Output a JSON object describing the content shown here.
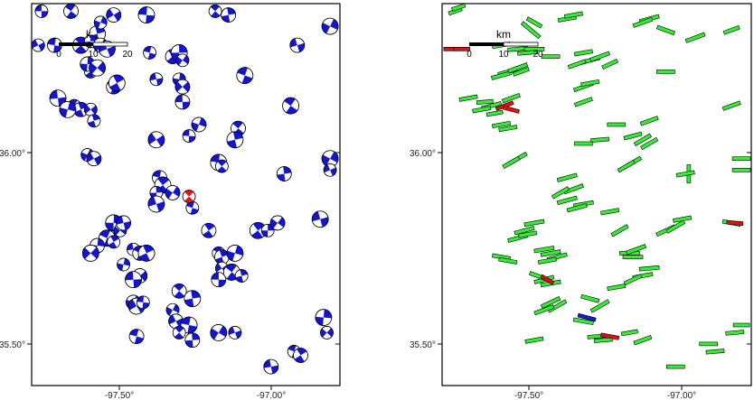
{
  "colors": {
    "beachball_fill": "#1515d0",
    "beachball_highlight": "#ee1111",
    "bar_green": "#33ee33",
    "bar_red": "#dd1111",
    "bar_blue": "#1a1acc",
    "frame": "#000000"
  },
  "panels": [
    {
      "name": "left-map",
      "symbol": "beachball",
      "x_ticks": [
        "-97.50°",
        "-97.00°"
      ],
      "y_ticks": [
        "36.00°",
        "35.50°"
      ],
      "scale": {
        "unit": "km",
        "labels": [
          "0",
          "10",
          "20"
        ],
        "unit_partial": "k"
      }
    },
    {
      "name": "right-map",
      "symbol": "strain-bar",
      "x_ticks": [
        "-97.50°",
        "-97.00°"
      ],
      "y_ticks": [
        "36.00°",
        "35.50°"
      ],
      "scale": {
        "unit": "km",
        "labels": [
          "0",
          "10",
          "20"
        ]
      }
    }
  ],
  "extent": {
    "lon_min": -97.73,
    "lon_max": -96.79,
    "lat_min": 35.39,
    "lat_max": 36.4
  },
  "left_events": [
    [
      -97.7,
      36.38
    ],
    [
      -97.61,
      36.38
    ],
    [
      -97.53,
      36.32
    ],
    [
      -97.52,
      36.35
    ],
    [
      -97.48,
      36.37
    ],
    [
      -97.38,
      36.37
    ],
    [
      -97.17,
      36.38
    ],
    [
      -97.13,
      36.37
    ],
    [
      -96.82,
      36.34
    ],
    [
      -97.71,
      36.29
    ],
    [
      -97.66,
      36.29
    ],
    [
      -97.58,
      36.29
    ],
    [
      -97.55,
      36.3
    ],
    [
      -97.52,
      36.29
    ],
    [
      -97.5,
      36.28
    ],
    [
      -97.37,
      36.27
    ],
    [
      -97.3,
      36.26
    ],
    [
      -97.28,
      36.27
    ],
    [
      -97.27,
      36.25
    ],
    [
      -96.92,
      36.29
    ],
    [
      -97.08,
      36.21
    ],
    [
      -97.55,
      36.22
    ],
    [
      -97.56,
      36.24
    ],
    [
      -97.53,
      36.23
    ],
    [
      -97.35,
      36.2
    ],
    [
      -97.48,
      36.18
    ],
    [
      -97.47,
      36.19
    ],
    [
      -97.28,
      36.2
    ],
    [
      -97.27,
      36.18
    ],
    [
      -97.65,
      36.15
    ],
    [
      -97.6,
      36.13
    ],
    [
      -97.58,
      36.12
    ],
    [
      -97.62,
      36.12
    ],
    [
      -97.55,
      36.12
    ],
    [
      -97.27,
      36.14
    ],
    [
      -96.94,
      36.13
    ],
    [
      -97.54,
      36.09
    ],
    [
      -97.22,
      36.08
    ],
    [
      -97.35,
      36.04
    ],
    [
      -97.25,
      36.05
    ],
    [
      -97.1,
      36.07
    ],
    [
      -97.11,
      36.04
    ],
    [
      -97.56,
      36.0
    ],
    [
      -97.54,
      35.99
    ],
    [
      -97.16,
      35.98
    ],
    [
      -97.15,
      35.97
    ],
    [
      -96.96,
      35.95
    ],
    [
      -96.82,
      35.99
    ],
    [
      -96.82,
      35.96
    ],
    [
      -97.34,
      35.94
    ],
    [
      -97.33,
      35.92
    ],
    [
      -97.35,
      35.9
    ],
    [
      -97.3,
      35.9
    ],
    [
      -97.35,
      35.87
    ],
    [
      -97.24,
      35.86
    ],
    [
      -97.19,
      35.8
    ],
    [
      -97.48,
      35.82
    ],
    [
      -97.46,
      35.8
    ],
    [
      -97.45,
      35.82
    ],
    [
      -97.5,
      35.78
    ],
    [
      -97.48,
      35.77
    ],
    [
      -97.53,
      35.76
    ],
    [
      -97.55,
      35.74
    ],
    [
      -97.42,
      35.75
    ],
    [
      -97.4,
      35.74
    ],
    [
      -97.38,
      35.74
    ],
    [
      -97.45,
      35.71
    ],
    [
      -97.4,
      35.68
    ],
    [
      -97.42,
      35.67
    ],
    [
      -97.16,
      35.74
    ],
    [
      -97.15,
      35.73
    ],
    [
      -97.11,
      35.74
    ],
    [
      -97.15,
      35.7
    ],
    [
      -97.16,
      35.67
    ],
    [
      -97.12,
      35.69
    ],
    [
      -97.09,
      35.68
    ],
    [
      -97.42,
      35.61
    ],
    [
      -97.41,
      35.6
    ],
    [
      -97.39,
      35.61
    ],
    [
      -97.28,
      35.64
    ],
    [
      -97.24,
      35.62
    ],
    [
      -97.3,
      35.59
    ],
    [
      -97.29,
      35.56
    ],
    [
      -97.25,
      35.55
    ],
    [
      -97.28,
      35.53
    ],
    [
      -97.24,
      35.51
    ],
    [
      -97.16,
      35.53
    ],
    [
      -97.11,
      35.53
    ],
    [
      -97.41,
      35.52
    ],
    [
      -97.04,
      35.8
    ],
    [
      -97.01,
      35.8
    ],
    [
      -96.98,
      35.82
    ],
    [
      -96.85,
      35.83
    ],
    [
      -96.93,
      35.48
    ],
    [
      -96.91,
      35.47
    ],
    [
      -96.84,
      35.57
    ],
    [
      -96.83,
      35.53
    ],
    [
      -97.0,
      35.44
    ]
  ],
  "left_highlight": [
    -97.25,
    35.89
  ],
  "right_bars": [
    [
      -97.69,
      36.38,
      15,
      20
    ],
    [
      -97.68,
      36.39,
      15,
      18
    ],
    [
      -97.46,
      36.33,
      25,
      -40
    ],
    [
      -97.45,
      36.35,
      18,
      -30
    ],
    [
      -97.35,
      36.36,
      20,
      10
    ],
    [
      -97.33,
      36.37,
      20,
      10
    ],
    [
      -97.1,
      36.36,
      22,
      15
    ],
    [
      -97.12,
      36.35,
      22,
      20
    ],
    [
      -97.05,
      36.33,
      20,
      -20
    ],
    [
      -96.96,
      36.31,
      22,
      20
    ],
    [
      -96.85,
      36.33,
      18,
      20
    ],
    [
      -97.55,
      36.29,
      20,
      10
    ],
    [
      -97.5,
      36.28,
      22,
      5
    ],
    [
      -97.45,
      36.28,
      22,
      0
    ],
    [
      -97.47,
      36.27,
      22,
      5
    ],
    [
      -97.4,
      36.26,
      20,
      0
    ],
    [
      -97.3,
      36.27,
      20,
      10
    ],
    [
      -97.28,
      36.25,
      22,
      15
    ],
    [
      -97.25,
      36.26,
      22,
      20
    ],
    [
      -97.32,
      36.24,
      20,
      20
    ],
    [
      -97.22,
      36.24,
      18,
      25
    ],
    [
      -97.53,
      36.22,
      22,
      15
    ],
    [
      -97.55,
      36.21,
      22,
      15
    ],
    [
      -97.5,
      36.23,
      22,
      20
    ],
    [
      -97.49,
      36.22,
      18,
      20
    ],
    [
      -97.05,
      36.22,
      20,
      0
    ],
    [
      -97.3,
      36.18,
      22,
      20
    ],
    [
      -97.28,
      36.19,
      20,
      10
    ],
    [
      -97.65,
      36.15,
      20,
      10
    ],
    [
      -97.52,
      36.15,
      20,
      20
    ],
    [
      -97.58,
      36.13,
      22,
      15
    ],
    [
      -97.61,
      36.12,
      20,
      10
    ],
    [
      -97.6,
      36.14,
      18,
      5
    ],
    [
      -97.57,
      36.11,
      18,
      10
    ],
    [
      -97.3,
      36.14,
      20,
      20
    ],
    [
      -96.85,
      36.13,
      20,
      20
    ],
    [
      -97.1,
      36.09,
      20,
      20
    ],
    [
      -97.2,
      36.08,
      20,
      0
    ],
    [
      -97.55,
      36.08,
      20,
      10
    ],
    [
      -97.53,
      36.07,
      20,
      10
    ],
    [
      -97.15,
      36.05,
      20,
      15
    ],
    [
      -97.12,
      36.04,
      20,
      30
    ],
    [
      -97.1,
      36.03,
      20,
      30
    ],
    [
      -97.25,
      36.04,
      20,
      5
    ],
    [
      -97.3,
      36.03,
      20,
      0
    ],
    [
      -97.5,
      35.99,
      22,
      30
    ],
    [
      -97.52,
      35.98,
      20,
      30
    ],
    [
      -97.15,
      35.98,
      20,
      30
    ],
    [
      -97.17,
      35.97,
      20,
      30
    ],
    [
      -96.98,
      35.95,
      20,
      90
    ],
    [
      -96.99,
      35.95,
      20,
      10
    ],
    [
      -96.82,
      35.99,
      20,
      0
    ],
    [
      -96.82,
      35.96,
      20,
      0
    ],
    [
      -97.35,
      35.94,
      22,
      15
    ],
    [
      -97.33,
      35.91,
      22,
      20
    ],
    [
      -97.35,
      35.88,
      22,
      15
    ],
    [
      -97.3,
      35.87,
      22,
      10
    ],
    [
      -97.32,
      35.86,
      22,
      15
    ],
    [
      -97.37,
      35.9,
      20,
      30
    ],
    [
      -97.22,
      35.85,
      20,
      10
    ],
    [
      -97.19,
      35.8,
      20,
      30
    ],
    [
      -97.45,
      35.82,
      22,
      10
    ],
    [
      -97.48,
      35.8,
      22,
      15
    ],
    [
      -97.5,
      35.78,
      22,
      15
    ],
    [
      -97.47,
      35.79,
      20,
      10
    ],
    [
      -97.42,
      35.75,
      22,
      10
    ],
    [
      -97.4,
      35.74,
      22,
      10
    ],
    [
      -97.38,
      35.73,
      22,
      15
    ],
    [
      -97.41,
      35.72,
      20,
      10
    ],
    [
      -97.55,
      35.73,
      20,
      -10
    ],
    [
      -97.53,
      35.72,
      20,
      -10
    ],
    [
      -97.05,
      35.8,
      22,
      25
    ],
    [
      -97.02,
      35.81,
      22,
      30
    ],
    [
      -97.0,
      35.83,
      20,
      10
    ],
    [
      -96.85,
      35.82,
      20,
      -10
    ],
    [
      -97.16,
      35.74,
      22,
      0
    ],
    [
      -97.15,
      35.73,
      22,
      0
    ],
    [
      -97.14,
      35.75,
      22,
      20
    ],
    [
      -97.1,
      35.7,
      22,
      5
    ],
    [
      -97.12,
      35.68,
      22,
      10
    ],
    [
      -97.15,
      35.67,
      20,
      25
    ],
    [
      -97.42,
      35.67,
      22,
      15
    ],
    [
      -97.4,
      35.66,
      22,
      10
    ],
    [
      -97.44,
      35.68,
      18,
      -20
    ],
    [
      -97.2,
      35.65,
      20,
      10
    ],
    [
      -97.4,
      35.61,
      22,
      25
    ],
    [
      -97.38,
      35.6,
      22,
      30
    ],
    [
      -97.42,
      35.59,
      22,
      20
    ],
    [
      -97.25,
      35.6,
      22,
      30
    ],
    [
      -97.28,
      35.62,
      20,
      -15
    ],
    [
      -97.3,
      35.56,
      22,
      -10
    ],
    [
      -97.26,
      35.52,
      20,
      5
    ],
    [
      -97.24,
      35.51,
      20,
      5
    ],
    [
      -97.45,
      35.51,
      20,
      10
    ],
    [
      -97.16,
      35.53,
      18,
      10
    ],
    [
      -97.12,
      35.51,
      20,
      20
    ],
    [
      -97.02,
      35.44,
      20,
      0
    ],
    [
      -96.92,
      35.5,
      20,
      0
    ],
    [
      -96.9,
      35.48,
      20,
      5
    ],
    [
      -96.84,
      35.53,
      20,
      5
    ],
    [
      -96.82,
      35.55,
      18,
      0
    ]
  ],
  "right_red_bars": [
    [
      -97.7,
      36.28,
      18,
      0
    ],
    [
      -97.67,
      36.28,
      18,
      0
    ],
    [
      -97.54,
      36.13,
      20,
      20
    ],
    [
      -97.52,
      36.12,
      18,
      -15
    ],
    [
      -97.41,
      35.67,
      15,
      -30
    ],
    [
      -97.22,
      35.52,
      20,
      -10
    ],
    [
      -96.84,
      35.82,
      18,
      -5
    ]
  ],
  "right_blue_bars": [
    [
      -97.29,
      35.57,
      20,
      -15
    ]
  ]
}
